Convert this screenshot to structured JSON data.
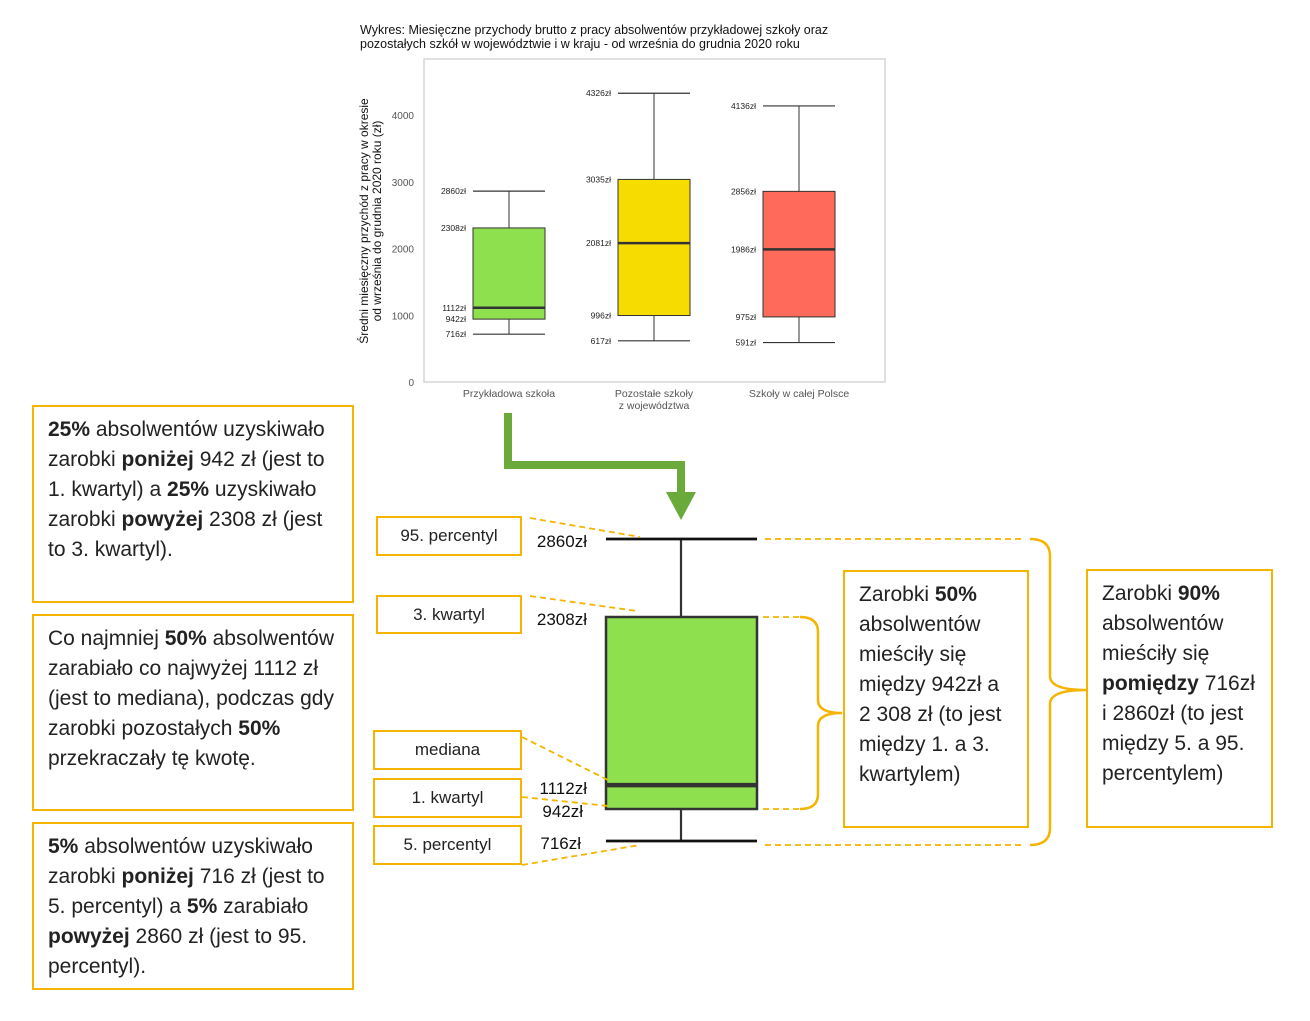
{
  "chart_data": {
    "type": "box",
    "title_lines": [
      "Wykres: Miesięczne przychody brutto z pracy absolwentów przykładowej szkoły oraz",
      "pozostałych szkół w województwie i w kraju - od września do grudnia 2020 roku"
    ],
    "ylabel_lines": [
      "Średni miesięczny przychód z pracy w okresie",
      "od września do grudnia 2020 roku (zł)"
    ],
    "ylim": [
      0,
      4600
    ],
    "yticks": [
      0,
      1000,
      2000,
      3000,
      4000
    ],
    "grid": false,
    "series": [
      {
        "category_lines": [
          "Przykładowa szkoła"
        ],
        "color": "#8ee04f",
        "p5": 716,
        "q1": 942,
        "median": 1112,
        "q3": 2308,
        "p95": 2860,
        "labels": {
          "p5": "716zł",
          "q1": "942zł",
          "median": "1112zł",
          "q3": "2308zł",
          "p95": "2860zł"
        }
      },
      {
        "category_lines": [
          "Pozostałe szkoły",
          "z województwa"
        ],
        "color": "#f7dc00",
        "p5": 617,
        "q1": 996,
        "median": 2081,
        "q3": 3035,
        "p95": 4326,
        "labels": {
          "p5": "617zł",
          "q1": "996zł",
          "median": "2081zł",
          "q3": "3035zł",
          "p95": "4326zł"
        }
      },
      {
        "category_lines": [
          "Szkoły w całej Polsce"
        ],
        "color": "#ff6a5a",
        "p5": 591,
        "q1": 975,
        "median": 1986,
        "q3": 2856,
        "p95": 4136,
        "labels": {
          "p5": "591zł",
          "q1": "975zł",
          "median": "1986zł",
          "q3": "2856zł",
          "p95": "4136zł"
        }
      }
    ]
  },
  "explainer": {
    "box_color": "#8ee04f",
    "arrow_color": "#6aaa3a",
    "accent_color": "#f4b400",
    "values": {
      "p5": 716,
      "q1": 942,
      "median": 1112,
      "q3": 2308,
      "p95": 2860
    },
    "value_labels": {
      "p95": "2860zł",
      "q3": "2308zł",
      "median": "1112zł",
      "q1": "942zł",
      "p5": "716zł"
    },
    "tags": {
      "p95": "95. percentyl",
      "q3": "3. kwartyl",
      "median": "mediana",
      "q1": "1. kwartyl",
      "p5": "5. percentyl"
    }
  },
  "notes": {
    "quartiles": [
      {
        "t": "25%",
        "b": true
      },
      {
        "t": " absolwentów uzyskiwało zarobki "
      },
      {
        "t": "poniżej",
        "b": true
      },
      {
        "t": " 942 zł (jest to 1. kwartyl) a "
      },
      {
        "t": "25%",
        "b": true
      },
      {
        "t": " uzyskiwało zarobki "
      },
      {
        "t": "powyżej",
        "b": true
      },
      {
        "t": " 2308 zł (jest to 3. kwartyl)."
      }
    ],
    "median": [
      {
        "t": "Co najmniej "
      },
      {
        "t": "50%",
        "b": true
      },
      {
        "t": " absolwentów zarabiało co najwyżej 1112 zł (jest to mediana), podczas gdy zarobki pozostałych "
      },
      {
        "t": "50%",
        "b": true
      },
      {
        "t": " przekraczały tę kwotę."
      }
    ],
    "percentiles": [
      {
        "t": "5%",
        "b": true
      },
      {
        "t": " absolwentów uzyskiwało zarobki "
      },
      {
        "t": "poniżej",
        "b": true
      },
      {
        "t": " 716 zł (jest to 5. percentyl) a "
      },
      {
        "t": "5%",
        "b": true
      },
      {
        "t": " zarabiało "
      },
      {
        "t": "powyżej",
        "b": true
      },
      {
        "t": " 2860 zł (jest to 95. percentyl)."
      }
    ],
    "middle50": [
      {
        "t": "Zarobki "
      },
      {
        "t": "50%",
        "b": true
      },
      {
        "t": " absolwentów mieściły się między 942zł a 2 308 zł (to jest między 1. a 3. kwartylem)"
      }
    ],
    "middle90": [
      {
        "t": "Zarobki "
      },
      {
        "t": "90%",
        "b": true
      },
      {
        "t": " absolwentów mieściły się "
      },
      {
        "t": "pomiędzy",
        "b": true
      },
      {
        "t": " 716zł i 2860zł (to jest między 5. a 95. percentylem)"
      }
    ]
  }
}
